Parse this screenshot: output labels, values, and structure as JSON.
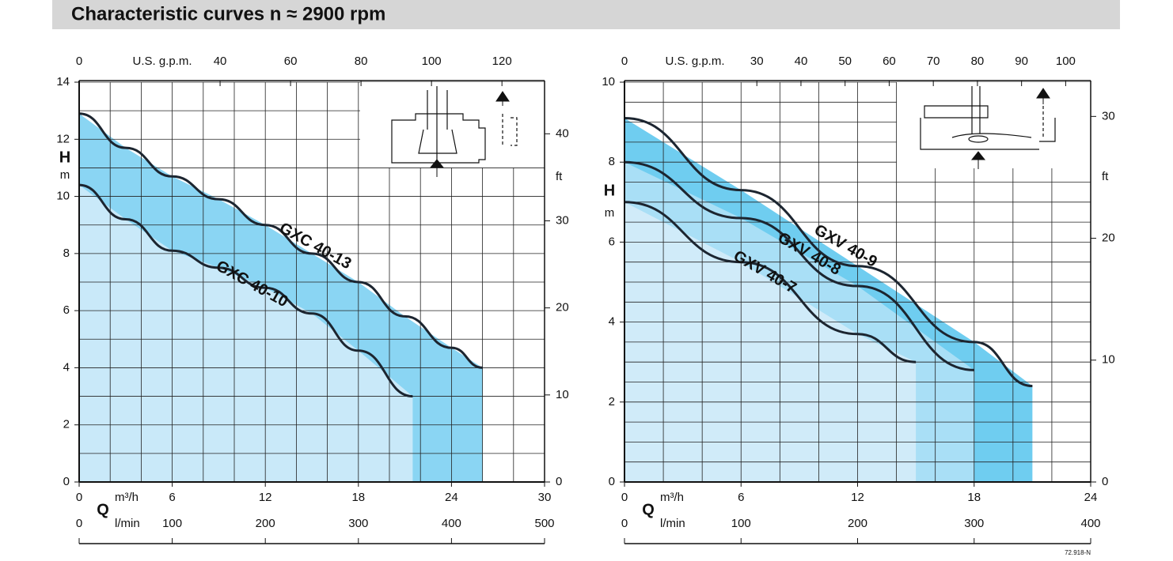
{
  "header": {
    "title": "Characteristic curves n ≈ 2900 rpm"
  },
  "footer": {
    "code": "72.918-N"
  },
  "chart_data": [
    {
      "type": "area",
      "x_symbol": "Q",
      "x_label": "m³/h",
      "xlim": [
        0,
        30
      ],
      "xticks": [
        0,
        6,
        12,
        18,
        24,
        30
      ],
      "xgrid": [
        0,
        2,
        4,
        6,
        8,
        10,
        12,
        14,
        16,
        18,
        20,
        22,
        24,
        26,
        28,
        30
      ],
      "y_label": "H",
      "y_unit": "m",
      "ylim": [
        0,
        14
      ],
      "yticks": [
        0,
        2,
        4,
        6,
        8,
        10,
        12,
        14
      ],
      "ygrid": [
        0,
        1,
        2,
        3,
        4,
        5,
        6,
        7,
        8,
        9,
        10,
        11,
        12,
        13,
        14
      ],
      "x2": {
        "label": "l/min",
        "lim": [
          0,
          500
        ],
        "ticks": [
          0,
          100,
          200,
          300,
          400,
          500
        ]
      },
      "x3": {
        "label": "U.S. g.p.m.",
        "lim": [
          0,
          132.09
        ],
        "ticks": [
          0,
          40,
          60,
          80,
          100,
          120
        ]
      },
      "y2": {
        "label": "ft",
        "lim": [
          0,
          45.93
        ],
        "ticks": [
          0,
          10,
          20,
          30,
          40
        ]
      },
      "series": [
        {
          "name": "GXC 40-13",
          "color": "#8ad5f3",
          "x": [
            0,
            3,
            6,
            9,
            12,
            15,
            18,
            21,
            24,
            26
          ],
          "values": [
            12.9,
            11.7,
            10.7,
            9.9,
            9.0,
            8.0,
            7.0,
            5.8,
            4.7,
            4.0
          ]
        },
        {
          "name": "GXC 40-10",
          "color": "#c9e9f9",
          "x": [
            0,
            3,
            6,
            9,
            12,
            15,
            18,
            21.5
          ],
          "values": [
            10.4,
            9.2,
            8.1,
            7.5,
            6.8,
            5.9,
            4.6,
            3.0
          ]
        }
      ]
    },
    {
      "type": "area",
      "x_symbol": "Q",
      "x_label": "m³/h",
      "xlim": [
        0,
        24
      ],
      "xticks": [
        0,
        6,
        12,
        18,
        24
      ],
      "xgrid": [
        0,
        2,
        4,
        6,
        8,
        10,
        12,
        14,
        16,
        18,
        20,
        22,
        24
      ],
      "y_label": "H",
      "y_unit": "m",
      "ylim": [
        0,
        10
      ],
      "yticks": [
        0,
        2,
        4,
        6,
        8,
        10
      ],
      "ygrid": [
        0,
        0.5,
        1,
        1.5,
        2,
        2.5,
        3,
        3.5,
        4,
        4.5,
        5,
        5.5,
        6,
        6.5,
        7,
        7.5,
        8,
        8.5,
        9,
        9.5,
        10
      ],
      "x2": {
        "label": "l/min",
        "lim": [
          0,
          400
        ],
        "ticks": [
          0,
          100,
          200,
          300,
          400
        ]
      },
      "x3": {
        "label": "U.S. g.p.m.",
        "lim": [
          0,
          105.67
        ],
        "ticks": [
          0,
          30,
          40,
          50,
          60,
          70,
          80,
          90,
          100
        ]
      },
      "y2": {
        "label": "ft",
        "lim": [
          0,
          32.81
        ],
        "ticks": [
          0,
          10,
          20,
          30
        ]
      },
      "series": [
        {
          "name": "GXV 40-9",
          "color": "#6fcdf0",
          "x": [
            0,
            6,
            12,
            18,
            21
          ],
          "values": [
            9.1,
            7.3,
            5.4,
            3.5,
            2.4
          ]
        },
        {
          "name": "GXV 40-8",
          "color": "#a9dff6",
          "x": [
            0,
            6,
            12,
            18
          ],
          "values": [
            8.0,
            6.6,
            4.9,
            2.8
          ]
        },
        {
          "name": "GXV 40-7",
          "color": "#d0ebf9",
          "x": [
            0,
            6,
            12,
            15
          ],
          "values": [
            7.0,
            5.5,
            3.7,
            3.0
          ]
        }
      ]
    }
  ]
}
